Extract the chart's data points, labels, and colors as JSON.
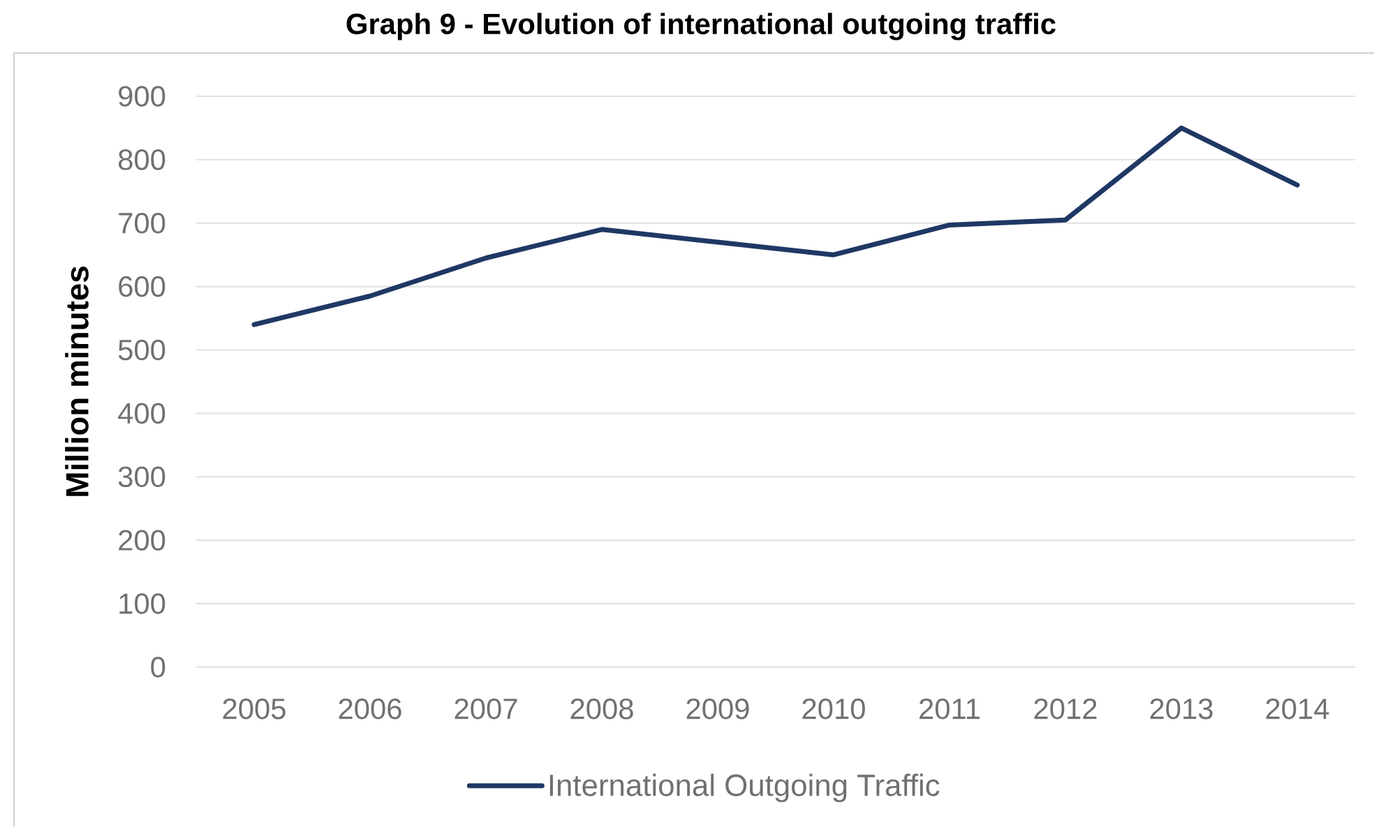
{
  "chart_data": {
    "type": "line",
    "title": "Graph 9 - Evolution of international outgoing traffic",
    "ylabel": "Million minutes",
    "categories": [
      "2005",
      "2006",
      "2007",
      "2008",
      "2009",
      "2010",
      "2011",
      "2012",
      "2013",
      "2014"
    ],
    "series": [
      {
        "name": "International Outgoing Traffic",
        "color": "#1f3864",
        "values": [
          540,
          585,
          645,
          690,
          670,
          650,
          697,
          705,
          850,
          760
        ]
      }
    ],
    "ylim": [
      0,
      900
    ],
    "yticks": [
      0,
      100,
      200,
      300,
      400,
      500,
      600,
      700,
      800,
      900
    ],
    "grid": "y",
    "legend": "bottom",
    "line_style": "solid"
  }
}
